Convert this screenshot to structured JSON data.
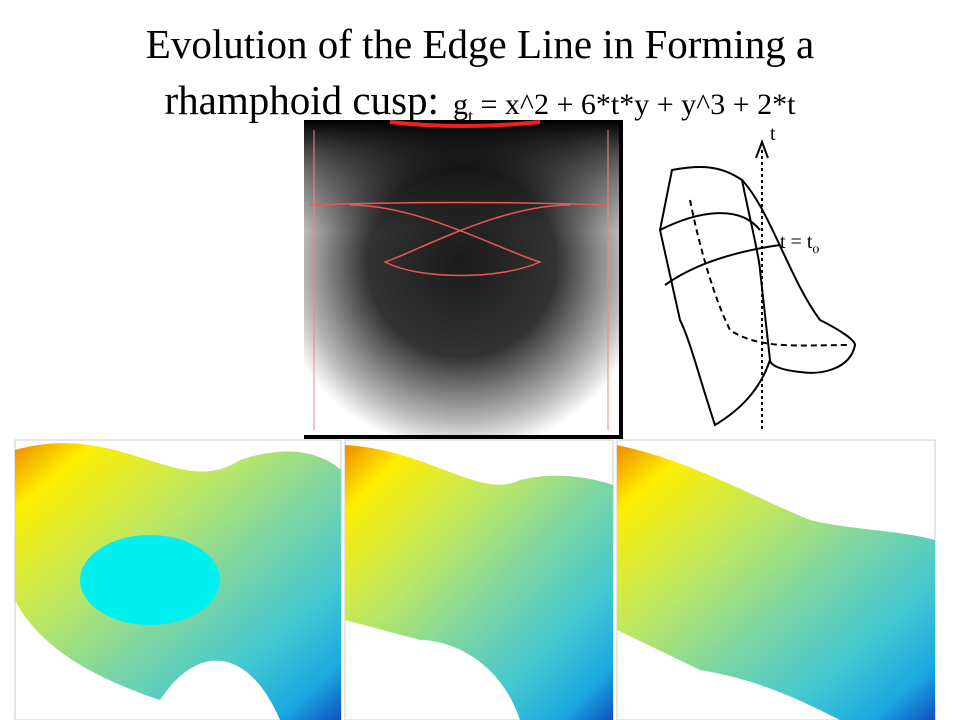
{
  "title": {
    "line1": "Evolution of the Edge Line in Forming a",
    "line2": "rhamphoid cusp:",
    "formula_base": "g",
    "formula_sub": "t",
    "formula_rest": " = x^2 + 6*t*y + y^3 + 2*t"
  },
  "sketch": {
    "axis_label": "t",
    "level_label": "t = t",
    "level_sub": "o"
  }
}
